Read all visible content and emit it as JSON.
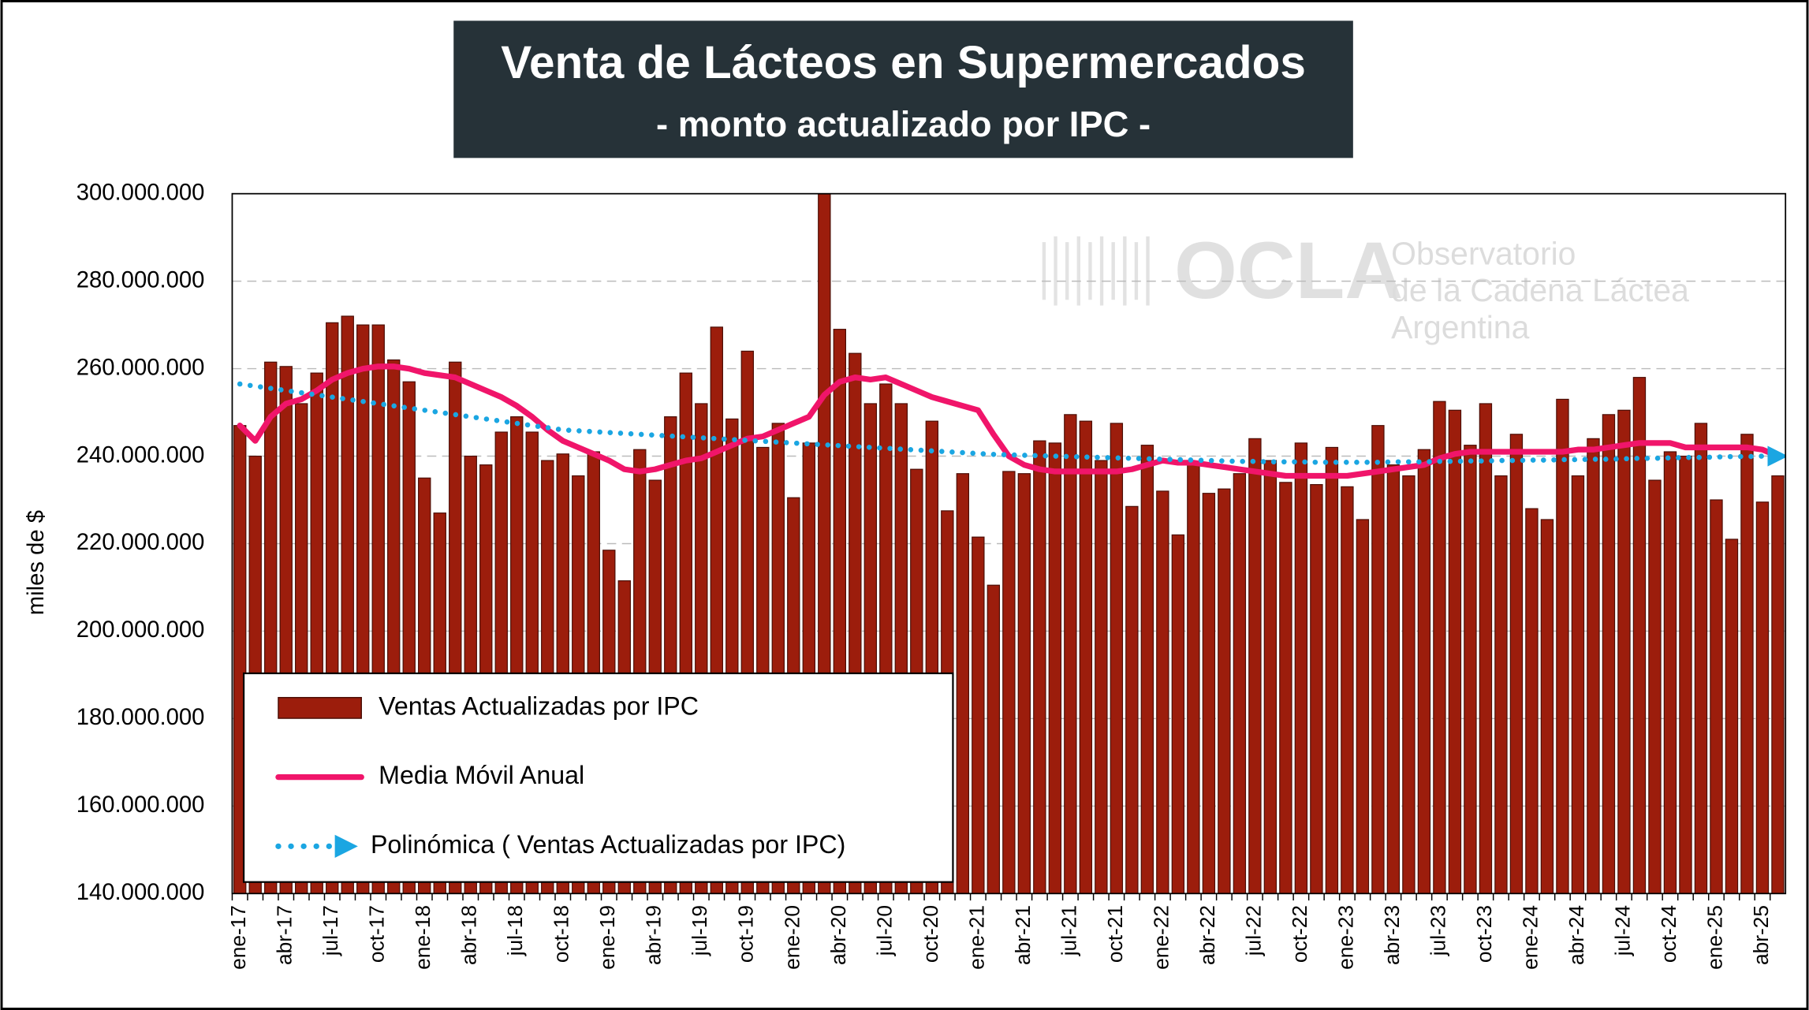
{
  "chart_data": {
    "type": "bar",
    "title": "Venta de Lácteos en Supermercados",
    "subtitle": "- monto actualizado por IPC -",
    "y_label": "miles de $",
    "watermark": {
      "name": "OCLA",
      "line1": "Observatorio",
      "line2": "de la Cadena Láctea",
      "line3": "Argentina"
    },
    "categories": [
      "ene-17",
      null,
      null,
      "abr-17",
      null,
      null,
      "jul-17",
      null,
      null,
      "oct-17",
      null,
      null,
      "ene-18",
      null,
      null,
      "abr-18",
      null,
      null,
      "jul-18",
      null,
      null,
      "oct-18",
      null,
      null,
      "ene-19",
      null,
      null,
      "abr-19",
      null,
      null,
      "jul-19",
      null,
      null,
      "oct-19",
      null,
      null,
      "ene-20",
      null,
      null,
      "abr-20",
      null,
      null,
      "jul-20",
      null,
      null,
      "oct-20",
      null,
      null,
      "ene-21",
      null,
      null,
      "abr-21",
      null,
      null,
      "jul-21",
      null,
      null,
      "oct-21",
      null,
      null,
      "ene-22",
      null,
      null,
      "abr-22",
      null,
      null,
      "jul-22",
      null,
      null,
      "oct-22",
      null,
      null,
      "ene-23",
      null,
      null,
      "abr-23",
      null,
      null,
      "jul-23",
      null,
      null,
      "oct-23",
      null,
      null,
      "ene-24",
      null,
      null,
      "abr-24",
      null,
      null,
      "jul-24",
      null,
      null,
      "oct-24",
      null,
      null,
      "ene-25",
      null,
      null,
      "abr-25",
      null
    ],
    "series": [
      {
        "name": "Ventas Actualizadas por IPC",
        "type": "bar",
        "color": "#9c1d0c",
        "values": [
          247000000,
          240000000,
          261500000,
          260500000,
          252000000,
          259000000,
          270500000,
          272000000,
          270000000,
          270000000,
          262000000,
          257000000,
          235000000,
          227000000,
          261500000,
          240000000,
          238000000,
          245500000,
          249000000,
          245500000,
          239000000,
          240500000,
          235500000,
          241000000,
          218500000,
          211500000,
          241500000,
          234500000,
          249000000,
          259000000,
          252000000,
          269500000,
          248500000,
          264000000,
          242000000,
          247500000,
          230500000,
          243000000,
          301000000,
          269000000,
          263500000,
          252000000,
          256500000,
          252000000,
          237000000,
          248000000,
          227500000,
          236000000,
          221500000,
          210500000,
          236500000,
          236000000,
          243500000,
          243000000,
          249500000,
          248000000,
          239000000,
          247500000,
          228500000,
          242500000,
          232000000,
          222000000,
          238000000,
          231500000,
          232500000,
          236000000,
          244000000,
          239000000,
          234000000,
          243000000,
          233500000,
          242000000,
          233000000,
          225500000,
          247000000,
          238000000,
          235500000,
          241500000,
          252500000,
          250500000,
          242500000,
          252000000,
          235500000,
          245000000,
          228000000,
          225500000,
          253000000,
          235500000,
          244000000,
          249500000,
          250500000,
          258000000,
          234500000,
          241000000,
          240000000,
          247500000,
          230000000,
          221000000,
          245000000,
          229500000,
          235500000
        ]
      },
      {
        "name": "Media Móvil Anual",
        "type": "line",
        "color": "#f0156a",
        "values": [
          247000000,
          243500000,
          249000000,
          252000000,
          253000000,
          255000000,
          257500000,
          259000000,
          260000000,
          260500000,
          260500000,
          260000000,
          259000000,
          258500000,
          258000000,
          256500000,
          255000000,
          253500000,
          251500000,
          249000000,
          246000000,
          243500000,
          242000000,
          240500000,
          239000000,
          237000000,
          236500000,
          237000000,
          238000000,
          239000000,
          239500000,
          241000000,
          242500000,
          244000000,
          244500000,
          246000000,
          247500000,
          249000000,
          254000000,
          257000000,
          258000000,
          257500000,
          258000000,
          256500000,
          255000000,
          253500000,
          252500000,
          251500000,
          250500000,
          245000000,
          240000000,
          238000000,
          237000000,
          236500000,
          236500000,
          236500000,
          236500000,
          236500000,
          237000000,
          238000000,
          239000000,
          238500000,
          238500000,
          238000000,
          237500000,
          237000000,
          236500000,
          236000000,
          235500000,
          235500000,
          235500000,
          235500000,
          235500000,
          236000000,
          236500000,
          237000000,
          237500000,
          238000000,
          239500000,
          240500000,
          241000000,
          241000000,
          241000000,
          241000000,
          241000000,
          241000000,
          241000000,
          241500000,
          241500000,
          242000000,
          242500000,
          243000000,
          243000000,
          243000000,
          242000000,
          242000000,
          242000000,
          242000000,
          242000000,
          241500000,
          240000000
        ]
      },
      {
        "name": "Polinómica ( Ventas Actualizadas por IPC)",
        "type": "trend",
        "color": "#1ba6e2",
        "values": [
          256500000,
          256000000,
          255500000,
          255000000,
          254500000,
          254000000,
          253500000,
          253000000,
          252500000,
          252000000,
          251500000,
          251000000,
          250500000,
          250000000,
          249500000,
          249000000,
          248500000,
          248000000,
          247500000,
          247000000,
          246500000,
          246000000,
          245800000,
          245600000,
          245400000,
          245200000,
          245000000,
          244800000,
          244600000,
          244400000,
          244200000,
          244000000,
          243800000,
          243600000,
          243400000,
          243200000,
          243000000,
          242800000,
          242600000,
          242400000,
          242200000,
          242000000,
          241800000,
          241600000,
          241400000,
          241200000,
          241000000,
          240800000,
          240600000,
          240400000,
          240300000,
          240200000,
          240100000,
          240000000,
          239900000,
          239800000,
          239700000,
          239600000,
          239500000,
          239400000,
          239300000,
          239200000,
          239100000,
          239000000,
          238900000,
          238800000,
          238800000,
          238700000,
          238700000,
          238700000,
          238600000,
          238600000,
          238600000,
          238600000,
          238600000,
          238700000,
          238700000,
          238700000,
          238800000,
          238800000,
          238900000,
          238900000,
          239000000,
          239000000,
          239100000,
          239100000,
          239200000,
          239200000,
          239300000,
          239300000,
          239400000,
          239500000,
          239500000,
          239600000,
          239700000,
          239700000,
          239800000,
          239900000,
          239900000,
          240000000,
          240000000
        ]
      }
    ],
    "ylim": [
      140000000,
      300000000
    ],
    "yticks": [
      {
        "value": 140000000,
        "label": "140.000.000"
      },
      {
        "value": 160000000,
        "label": "160.000.000"
      },
      {
        "value": 180000000,
        "label": "180.000.000"
      },
      {
        "value": 200000000,
        "label": "200.000.000"
      },
      {
        "value": 220000000,
        "label": "220.000.000"
      },
      {
        "value": 240000000,
        "label": "240.000.000"
      },
      {
        "value": 260000000,
        "label": "260.000.000"
      },
      {
        "value": 280000000,
        "label": "280.000.000"
      },
      {
        "value": 300000000,
        "label": "300.000.000"
      }
    ],
    "grid": true,
    "legend": "lower left"
  }
}
